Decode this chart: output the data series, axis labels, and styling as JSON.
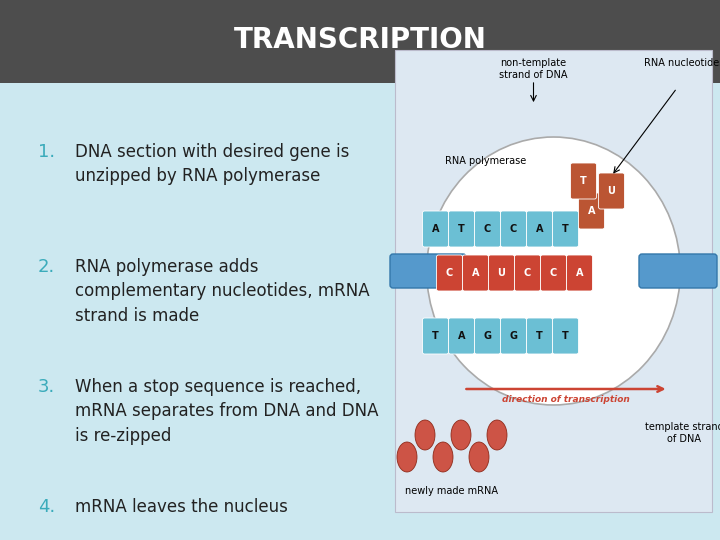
{
  "title": "TRANSCRIPTION",
  "title_bg_color": "#4d4d4d",
  "title_text_color": "#ffffff",
  "body_bg_color": "#cce8f0",
  "number_color": "#3aabbb",
  "text_color": "#222222",
  "items": [
    {
      "num": "1.",
      "text": "DNA section with desired gene is\nunzipped by RNA polymerase"
    },
    {
      "num": "2.",
      "text": "RNA polymerase adds\ncomplementary nucleotides, mRNA\nstrand is made"
    },
    {
      "num": "3.",
      "text": "When a stop sequence is reached,\nmRNA separates from DNA and DNA\nis re-zipped"
    },
    {
      "num": "4.",
      "text": "mRNA leaves the nucleus"
    }
  ],
  "title_bar_height": 0.155,
  "font_size_title": 20,
  "font_size_num": 13,
  "font_size_text": 12,
  "blue_col": "#6bbfd4",
  "red_col": "#cc4433",
  "dark_red": "#882211",
  "img_bg": "#dde8f0"
}
